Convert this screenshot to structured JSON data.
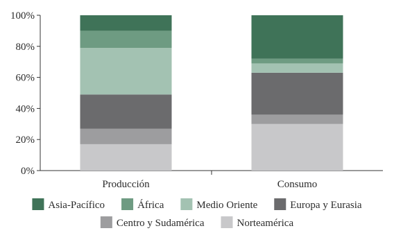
{
  "chart_data": {
    "type": "bar",
    "stacked": true,
    "normalized": true,
    "categories": [
      "Producción",
      "Consumo"
    ],
    "series": [
      {
        "name": "Norteamérica",
        "values": [
          17,
          30
        ],
        "color": "#c8c8ca"
      },
      {
        "name": "Centro y Sudamérica",
        "values": [
          10,
          6
        ],
        "color": "#9d9d9f"
      },
      {
        "name": "Europa y Eurasia",
        "values": [
          22,
          27
        ],
        "color": "#6b6b6d"
      },
      {
        "name": "Medio Oriente",
        "values": [
          30,
          6
        ],
        "color": "#a3c2b2"
      },
      {
        "name": "África",
        "values": [
          11,
          3
        ],
        "color": "#6e9b82"
      },
      {
        "name": "Asia-Pacífico",
        "values": [
          10,
          28
        ],
        "color": "#3f7358"
      }
    ],
    "legend_order": [
      "Asia-Pacífico",
      "África",
      "Medio Oriente",
      "Europa y Eurasia",
      "Centro y Sudamérica",
      "Norteamérica"
    ],
    "ylim": [
      0,
      100
    ],
    "yticks": [
      "0%",
      "20%",
      "40%",
      "60%",
      "80%",
      "100%"
    ],
    "grid": false,
    "legend_position": "bottom"
  }
}
